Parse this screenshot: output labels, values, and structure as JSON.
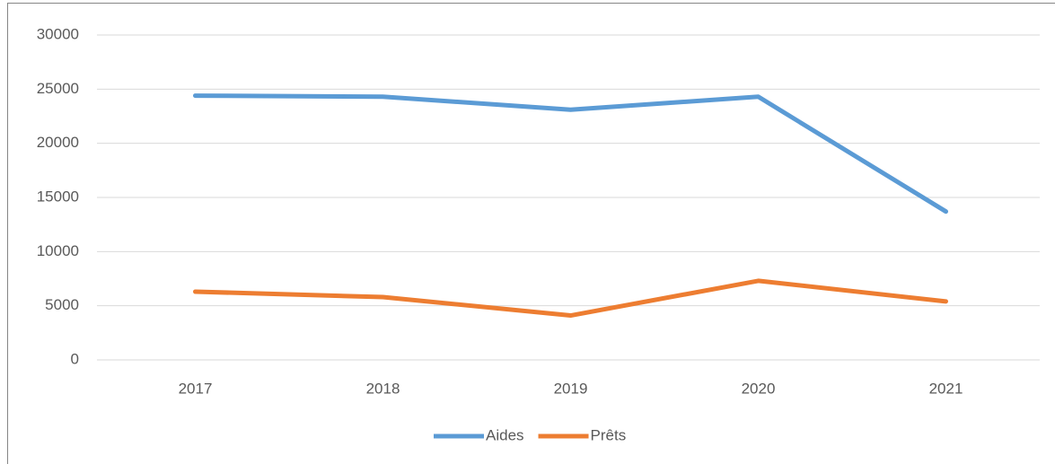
{
  "chart_data": {
    "type": "line",
    "categories": [
      "2017",
      "2018",
      "2019",
      "2020",
      "2021"
    ],
    "series": [
      {
        "name": "Aides",
        "color": "#5b9bd5",
        "values": [
          24400,
          24300,
          23100,
          24300,
          13700
        ]
      },
      {
        "name": "Prêts",
        "color": "#ed7d31",
        "values": [
          6300,
          5800,
          4100,
          7300,
          5400
        ]
      }
    ],
    "ylim": [
      0,
      30000
    ],
    "yticks": [
      0,
      5000,
      10000,
      15000,
      20000,
      25000,
      30000
    ],
    "grid": true,
    "legend": "bottom"
  }
}
